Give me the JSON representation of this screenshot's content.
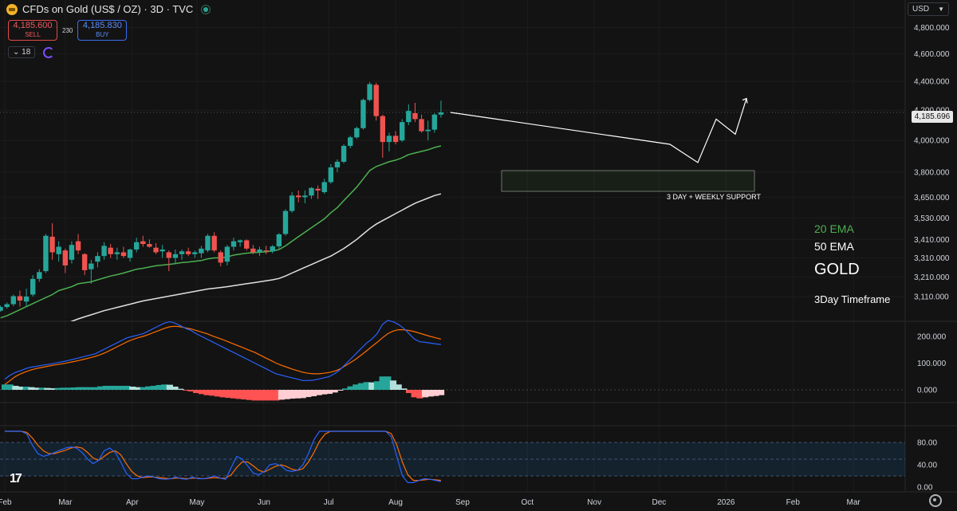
{
  "header": {
    "symbol_title": "CFDs on Gold (US$ / OZ) · 3D · TVC",
    "icon": "gold-coin-icon",
    "status_icon": "market-open-dot-icon"
  },
  "trade": {
    "sell_price": "4,185.600",
    "sell_label": "SELL",
    "spread": "230",
    "buy_price": "4,185.830",
    "buy_label": "BUY"
  },
  "indicators": {
    "count": "18"
  },
  "currency": {
    "label": "USD"
  },
  "last_price_label": "4,185.696",
  "annotations": {
    "support": "3 DAY + WEEKLY SUPPORT",
    "ema20": "20 EMA",
    "ema50": "50 EMA",
    "gold": "GOLD",
    "timeframe": "3Day Timeframe"
  },
  "colors": {
    "background": "#131313",
    "up": "#26a69a",
    "down": "#ef5350",
    "ema20": "#4caf50",
    "ema50": "#e0e0e0",
    "macd": "#2962ff",
    "signal": "#ff6d00",
    "stoch_k": "#2962ff",
    "stoch_d": "#ff6d00"
  },
  "chart_data": {
    "type": "candlestick",
    "price_axis": {
      "ticks": [
        3110,
        3210,
        3310,
        3410,
        3530,
        3650,
        3800,
        4000,
        4200,
        4400,
        4600,
        4800
      ],
      "tick_labels": [
        "3,110.000",
        "3,210.000",
        "3,310.000",
        "3,410.000",
        "3,530.000",
        "3,650.000",
        "3,800.000",
        "4,000.000",
        "4,200.000",
        "4,400.000",
        "4,600.000",
        "4,800.000"
      ],
      "scale": "log"
    },
    "time_axis": {
      "labels": [
        "Feb",
        "Mar",
        "Apr",
        "May",
        "Jun",
        "Jul",
        "Aug",
        "Sep",
        "Oct",
        "Nov",
        "Dec",
        "2026",
        "Feb",
        "Mar"
      ],
      "label_dates": [
        "2025-02-01",
        "2025-03-01",
        "2025-04-01",
        "2025-05-01",
        "2025-06-01",
        "2025-07-01",
        "2025-08-01",
        "2025-09-01",
        "2025-10-01",
        "2025-11-01",
        "2025-12-01",
        "2026-01-01",
        "2026-02-01",
        "2026-03-01"
      ],
      "start_date": "2025-01-30",
      "candle_interval_days": 3
    },
    "candles": [
      {
        "o": 3040,
        "h": 3065,
        "l": 3035,
        "c": 3058
      },
      {
        "o": 3058,
        "h": 3080,
        "l": 3050,
        "c": 3072
      },
      {
        "o": 3072,
        "h": 3120,
        "l": 3062,
        "c": 3112
      },
      {
        "o": 3112,
        "h": 3140,
        "l": 3060,
        "c": 3090
      },
      {
        "o": 3085,
        "h": 3150,
        "l": 3060,
        "c": 3110
      },
      {
        "o": 3120,
        "h": 3220,
        "l": 3110,
        "c": 3200
      },
      {
        "o": 3200,
        "h": 3250,
        "l": 3185,
        "c": 3235
      },
      {
        "o": 3240,
        "h": 3440,
        "l": 3230,
        "c": 3430
      },
      {
        "o": 3425,
        "h": 3500,
        "l": 3300,
        "c": 3340
      },
      {
        "o": 3330,
        "h": 3400,
        "l": 3290,
        "c": 3370
      },
      {
        "o": 3350,
        "h": 3360,
        "l": 3230,
        "c": 3270
      },
      {
        "o": 3300,
        "h": 3400,
        "l": 3280,
        "c": 3380
      },
      {
        "o": 3400,
        "h": 3440,
        "l": 3330,
        "c": 3350
      },
      {
        "o": 3330,
        "h": 3335,
        "l": 3220,
        "c": 3245
      },
      {
        "o": 3250,
        "h": 3300,
        "l": 3175,
        "c": 3280
      },
      {
        "o": 3290,
        "h": 3340,
        "l": 3260,
        "c": 3320
      },
      {
        "o": 3320,
        "h": 3395,
        "l": 3300,
        "c": 3375
      },
      {
        "o": 3365,
        "h": 3385,
        "l": 3310,
        "c": 3330
      },
      {
        "o": 3330,
        "h": 3365,
        "l": 3300,
        "c": 3340
      },
      {
        "o": 3340,
        "h": 3370,
        "l": 3310,
        "c": 3320
      },
      {
        "o": 3310,
        "h": 3360,
        "l": 3290,
        "c": 3355
      },
      {
        "o": 3355,
        "h": 3420,
        "l": 3340,
        "c": 3395
      },
      {
        "o": 3400,
        "h": 3430,
        "l": 3370,
        "c": 3385
      },
      {
        "o": 3385,
        "h": 3410,
        "l": 3365,
        "c": 3370
      },
      {
        "o": 3365,
        "h": 3390,
        "l": 3330,
        "c": 3340
      },
      {
        "o": 3345,
        "h": 3380,
        "l": 3310,
        "c": 3355
      },
      {
        "o": 3340,
        "h": 3350,
        "l": 3240,
        "c": 3310
      },
      {
        "o": 3310,
        "h": 3355,
        "l": 3280,
        "c": 3330
      },
      {
        "o": 3330,
        "h": 3355,
        "l": 3300,
        "c": 3345
      },
      {
        "o": 3345,
        "h": 3365,
        "l": 3320,
        "c": 3330
      },
      {
        "o": 3330,
        "h": 3350,
        "l": 3310,
        "c": 3340
      },
      {
        "o": 3335,
        "h": 3375,
        "l": 3310,
        "c": 3360
      },
      {
        "o": 3350,
        "h": 3440,
        "l": 3340,
        "c": 3430
      },
      {
        "o": 3430,
        "h": 3450,
        "l": 3340,
        "c": 3350
      },
      {
        "o": 3340,
        "h": 3350,
        "l": 3265,
        "c": 3285
      },
      {
        "o": 3290,
        "h": 3380,
        "l": 3270,
        "c": 3370
      },
      {
        "o": 3370,
        "h": 3420,
        "l": 3350,
        "c": 3400
      },
      {
        "o": 3395,
        "h": 3410,
        "l": 3370,
        "c": 3405
      },
      {
        "o": 3405,
        "h": 3410,
        "l": 3350,
        "c": 3360
      },
      {
        "o": 3360,
        "h": 3380,
        "l": 3330,
        "c": 3340
      },
      {
        "o": 3340,
        "h": 3370,
        "l": 3320,
        "c": 3355
      },
      {
        "o": 3350,
        "h": 3375,
        "l": 3330,
        "c": 3345
      },
      {
        "o": 3345,
        "h": 3380,
        "l": 3335,
        "c": 3372
      },
      {
        "o": 3372,
        "h": 3445,
        "l": 3360,
        "c": 3438
      },
      {
        "o": 3440,
        "h": 3580,
        "l": 3430,
        "c": 3570
      },
      {
        "o": 3570,
        "h": 3680,
        "l": 3560,
        "c": 3660
      },
      {
        "o": 3660,
        "h": 3690,
        "l": 3620,
        "c": 3650
      },
      {
        "o": 3650,
        "h": 3690,
        "l": 3615,
        "c": 3660
      },
      {
        "o": 3660,
        "h": 3710,
        "l": 3640,
        "c": 3705
      },
      {
        "o": 3700,
        "h": 3720,
        "l": 3640,
        "c": 3690
      },
      {
        "o": 3680,
        "h": 3760,
        "l": 3670,
        "c": 3740
      },
      {
        "o": 3740,
        "h": 3850,
        "l": 3730,
        "c": 3830
      },
      {
        "o": 3830,
        "h": 3880,
        "l": 3800,
        "c": 3865
      },
      {
        "o": 3865,
        "h": 3975,
        "l": 3855,
        "c": 3965
      },
      {
        "o": 3965,
        "h": 4030,
        "l": 3950,
        "c": 4020
      },
      {
        "o": 4020,
        "h": 4090,
        "l": 4010,
        "c": 4080
      },
      {
        "o": 4080,
        "h": 4280,
        "l": 4070,
        "c": 4270
      },
      {
        "o": 4270,
        "h": 4395,
        "l": 4260,
        "c": 4380
      },
      {
        "o": 4375,
        "h": 4390,
        "l": 4130,
        "c": 4160
      },
      {
        "o": 4160,
        "h": 4170,
        "l": 3890,
        "c": 3990
      },
      {
        "o": 3990,
        "h": 4050,
        "l": 3930,
        "c": 4030
      },
      {
        "o": 4030,
        "h": 4060,
        "l": 3975,
        "c": 3990
      },
      {
        "o": 4000,
        "h": 4140,
        "l": 3990,
        "c": 4120
      },
      {
        "o": 4120,
        "h": 4240,
        "l": 4100,
        "c": 4195
      },
      {
        "o": 4180,
        "h": 4250,
        "l": 4120,
        "c": 4140
      },
      {
        "o": 4140,
        "h": 4170,
        "l": 4050,
        "c": 4060
      },
      {
        "o": 4060,
        "h": 4130,
        "l": 4000,
        "c": 4070
      },
      {
        "o": 4070,
        "h": 4180,
        "l": 4050,
        "c": 4170
      },
      {
        "o": 4170,
        "h": 4265,
        "l": 4150,
        "c": 4185
      }
    ],
    "ema20": [
      3005,
      3015,
      3030,
      3045,
      3060,
      3075,
      3090,
      3105,
      3120,
      3140,
      3150,
      3160,
      3175,
      3180,
      3185,
      3195,
      3205,
      3215,
      3222,
      3230,
      3240,
      3250,
      3255,
      3262,
      3268,
      3272,
      3275,
      3280,
      3285,
      3288,
      3292,
      3296,
      3305,
      3310,
      3310,
      3315,
      3325,
      3330,
      3335,
      3338,
      3340,
      3343,
      3347,
      3355,
      3375,
      3400,
      3425,
      3450,
      3475,
      3500,
      3525,
      3560,
      3590,
      3630,
      3670,
      3710,
      3760,
      3810,
      3835,
      3850,
      3865,
      3875,
      3890,
      3910,
      3920,
      3930,
      3940,
      3955,
      3965
    ],
    "ema50": [
      2850,
      2862,
      2875,
      2888,
      2900,
      2912,
      2925,
      2938,
      2950,
      2962,
      2975,
      2988,
      3000,
      3010,
      3020,
      3030,
      3040,
      3048,
      3056,
      3064,
      3072,
      3080,
      3088,
      3094,
      3100,
      3106,
      3112,
      3118,
      3124,
      3130,
      3136,
      3142,
      3148,
      3152,
      3156,
      3160,
      3165,
      3170,
      3175,
      3180,
      3185,
      3190,
      3195,
      3202,
      3215,
      3230,
      3245,
      3260,
      3275,
      3290,
      3305,
      3320,
      3340,
      3360,
      3385,
      3410,
      3440,
      3470,
      3495,
      3515,
      3535,
      3555,
      3575,
      3595,
      3615,
      3630,
      3645,
      3660,
      3670
    ],
    "macd_axis": {
      "ticks": [
        0,
        100,
        200
      ],
      "tick_labels": [
        "0.000",
        "100.000",
        "200.000"
      ]
    },
    "macd": [
      40,
      55,
      65,
      72,
      80,
      85,
      88,
      92,
      95,
      98,
      102,
      106,
      110,
      115,
      120,
      125,
      130,
      135,
      145,
      155,
      165,
      175,
      185,
      195,
      200,
      205,
      210,
      220,
      230,
      240,
      250,
      255,
      250,
      240,
      230,
      222,
      210,
      200,
      190,
      180,
      170,
      160,
      150,
      140,
      130,
      120,
      110,
      100,
      90,
      80,
      70,
      60,
      55,
      50,
      45,
      40,
      35,
      35,
      36,
      40,
      45,
      50,
      60,
      75,
      95,
      115,
      135,
      155,
      175,
      190,
      210,
      245,
      260,
      255,
      245,
      230,
      210,
      190,
      180,
      178,
      175,
      172,
      170
    ],
    "signal": [
      20,
      35,
      50,
      60,
      68,
      75,
      80,
      84,
      88,
      92,
      95,
      98,
      102,
      106,
      110,
      115,
      120,
      125,
      132,
      140,
      150,
      160,
      170,
      180,
      188,
      195,
      200,
      207,
      215,
      222,
      230,
      236,
      238,
      236,
      232,
      228,
      222,
      216,
      210,
      202,
      195,
      188,
      180,
      172,
      164,
      156,
      148,
      140,
      130,
      120,
      110,
      100,
      92,
      85,
      78,
      72,
      66,
      62,
      60,
      60,
      62,
      65,
      70,
      78,
      90,
      102,
      115,
      130,
      146,
      162,
      178,
      195,
      210,
      220,
      225,
      225,
      222,
      218,
      212,
      206,
      200,
      195,
      190
    ],
    "histogram": [
      20,
      20,
      15,
      12,
      12,
      10,
      8,
      8,
      7,
      6,
      7,
      8,
      8,
      9,
      10,
      10,
      10,
      10,
      13,
      15,
      15,
      15,
      15,
      15,
      12,
      10,
      10,
      13,
      15,
      18,
      20,
      19,
      12,
      4,
      -2,
      -6,
      -12,
      -16,
      -20,
      -22,
      -25,
      -28,
      -30,
      -32,
      -34,
      -36,
      -38,
      -40,
      -40,
      -40,
      -40,
      -40,
      -37,
      -35,
      -33,
      -32,
      -31,
      -27,
      -24,
      -20,
      -17,
      -15,
      -10,
      -3,
      5,
      13,
      20,
      25,
      29,
      28,
      32,
      50,
      50,
      35,
      20,
      5,
      -12,
      -28,
      -32,
      -28,
      -25,
      -23,
      -20
    ],
    "stoch_axis": {
      "ticks": [
        0,
        40,
        80
      ],
      "tick_labels": [
        "0.00",
        "40.00",
        "80.00"
      ],
      "upper_band": 80,
      "lower_band": 20
    },
    "stoch_k": [
      100,
      100,
      100,
      100,
      95,
      75,
      60,
      55,
      58,
      62,
      66,
      70,
      72,
      70,
      62,
      50,
      42,
      48,
      65,
      70,
      62,
      45,
      25,
      15,
      15,
      18,
      20,
      18,
      15,
      14,
      15,
      18,
      15,
      14,
      18,
      15,
      15,
      17,
      20,
      16,
      14,
      35,
      55,
      50,
      38,
      25,
      22,
      28,
      40,
      42,
      38,
      30,
      28,
      30,
      40,
      60,
      85,
      100,
      100,
      100,
      100,
      100,
      100,
      100,
      100,
      100,
      100,
      100,
      100,
      100,
      90,
      55,
      20,
      8,
      8,
      12,
      15,
      14,
      12,
      10
    ],
    "stoch_d": [
      100,
      100,
      100,
      100,
      98,
      88,
      75,
      65,
      60,
      60,
      63,
      66,
      70,
      72,
      70,
      62,
      52,
      48,
      55,
      62,
      65,
      58,
      42,
      28,
      20,
      17,
      18,
      18,
      17,
      16,
      15,
      16,
      16,
      15,
      16,
      16,
      15,
      16,
      17,
      16,
      16,
      22,
      35,
      45,
      45,
      38,
      30,
      27,
      32,
      37,
      40,
      37,
      32,
      30,
      33,
      45,
      62,
      82,
      95,
      100,
      100,
      100,
      100,
      100,
      100,
      100,
      100,
      100,
      100,
      100,
      96,
      75,
      45,
      22,
      12,
      12,
      13,
      14,
      13,
      12
    ],
    "projection_path": [
      [
        4185,
        4100
      ],
      [
        4250,
        3975
      ],
      [
        4080,
        3990
      ],
      [
        4040,
        3860
      ],
      [
        3860,
        4120
      ],
      [
        4160,
        4040
      ],
      [
        4040,
        4265
      ],
      [
        4265,
        4300
      ]
    ]
  }
}
